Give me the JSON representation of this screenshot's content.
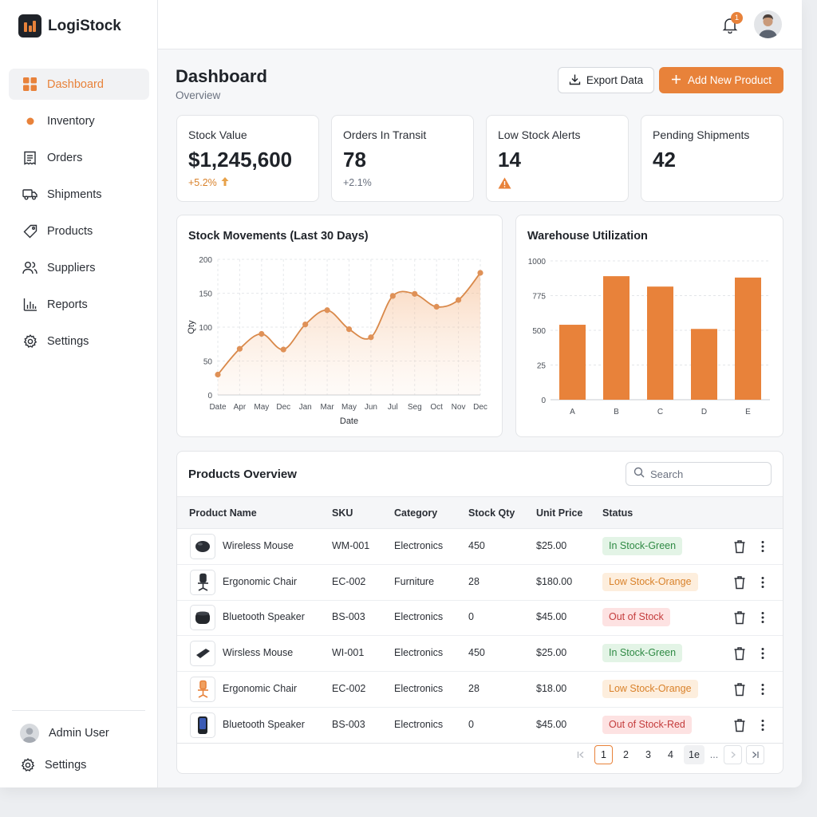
{
  "brand": {
    "name": "LogiStock",
    "accent": "#e8823a"
  },
  "sidebar": {
    "items": [
      {
        "label": "Dashboard",
        "icon": "grid-icon",
        "active": true
      },
      {
        "label": "Inventory",
        "icon": "dot-icon",
        "active": false
      },
      {
        "label": "Orders",
        "icon": "receipt-icon",
        "active": false
      },
      {
        "label": "Shipments",
        "icon": "truck-icon",
        "active": false
      },
      {
        "label": "Products",
        "icon": "tag-icon",
        "active": false
      },
      {
        "label": "Suppliers",
        "icon": "users-icon",
        "active": false
      },
      {
        "label": "Reports",
        "icon": "bar-chart-icon",
        "active": false
      },
      {
        "label": "Settings",
        "icon": "gear-icon",
        "active": false
      }
    ],
    "user_label": "Admin User",
    "bottom_settings_label": "Settings"
  },
  "header": {
    "notification_count": "1"
  },
  "page": {
    "title": "Dashboard",
    "subtitle": "Overview",
    "export_label": "Export Data",
    "add_label": "Add New Product"
  },
  "kpis": [
    {
      "label": "Stock Value",
      "value": "$1,245,600",
      "delta": "+5.2%",
      "delta_color": "#d9822b"
    },
    {
      "label": "Orders In Transit",
      "value": "78",
      "delta": "+2.1%",
      "delta_color": "#6b7280"
    },
    {
      "label": "Low Stock Alerts",
      "value": "14",
      "delta": "",
      "delta_color": "#e8823a"
    },
    {
      "label": "Pending Shipments",
      "value": "42",
      "delta": "",
      "delta_color": "#6b7280"
    }
  ],
  "chart_data": [
    {
      "type": "line",
      "title": "Stock Movements (Last 30 Days)",
      "xlabel": "Date",
      "ylabel": "Qty",
      "x": [
        "Date",
        "Apr",
        "May",
        "Dec",
        "Jan",
        "Mar",
        "May",
        "Jun",
        "Jul",
        "Seg",
        "Oct",
        "Nov",
        "Dec"
      ],
      "values": [
        30,
        68,
        90,
        67,
        104,
        125,
        97,
        85,
        146,
        149,
        130,
        140,
        180
      ],
      "ylim": [
        0,
        200
      ],
      "yticks": [
        "0",
        "50",
        "100",
        "150",
        "200"
      ],
      "grid": true,
      "color": "#d9894a"
    },
    {
      "type": "bar",
      "title": "Warehouse Utilization",
      "categories": [
        "A",
        "B",
        "C",
        "D",
        "E"
      ],
      "values": [
        540,
        890,
        815,
        510,
        880
      ],
      "ylim": [
        0,
        1000
      ],
      "yticks": [
        "0",
        "25",
        "500",
        "775",
        "1000"
      ],
      "grid": true,
      "color": "#e8823a"
    }
  ],
  "table": {
    "title": "Products Overview",
    "search_placeholder": "Search",
    "columns": [
      "Product Name",
      "SKU",
      "Category",
      "Stock Qty",
      "Unit Price",
      "Status"
    ],
    "rows": [
      {
        "name": "Wireless Mouse",
        "sku": "WM-001",
        "category": "Electronics",
        "qty": "450",
        "price": "$25.00",
        "status": "In Stock-Green",
        "status_kind": "green",
        "thumb": "mouse-icon"
      },
      {
        "name": "Ergonomic Chair",
        "sku": "EC-002",
        "category": "Furniture",
        "qty": "28",
        "price": "$180.00",
        "status": "Low Stock-Orange",
        "status_kind": "orange",
        "thumb": "chair-icon"
      },
      {
        "name": "Bluetooth Speaker",
        "sku": "BS-003",
        "category": "Electronics",
        "qty": "0",
        "price": "$45.00",
        "status": "Out of Stock",
        "status_kind": "red",
        "thumb": "speaker-icon"
      },
      {
        "name": "Wirsless Mouse",
        "sku": "WI-001",
        "category": "Electronics",
        "qty": "450",
        "price": "$25.00",
        "status": "In Stock-Green",
        "status_kind": "green",
        "thumb": "mouse-icon"
      },
      {
        "name": "Ergonomic Chair",
        "sku": "EC-002",
        "category": "Electronics",
        "qty": "28",
        "price": "$18.00",
        "status": "Low Stock-Orange",
        "status_kind": "orange",
        "thumb": "chair-icon"
      },
      {
        "name": "Bluetooth Speaker",
        "sku": "BS-003",
        "category": "Electronics",
        "qty": "0",
        "price": "$45.00",
        "status": "Out of Stock-Red",
        "status_kind": "red",
        "thumb": "speaker-icon"
      }
    ],
    "pagination": {
      "pages": [
        "1",
        "2",
        "3",
        "4",
        "1e"
      ],
      "current": "1",
      "ellipsis": "..."
    }
  }
}
